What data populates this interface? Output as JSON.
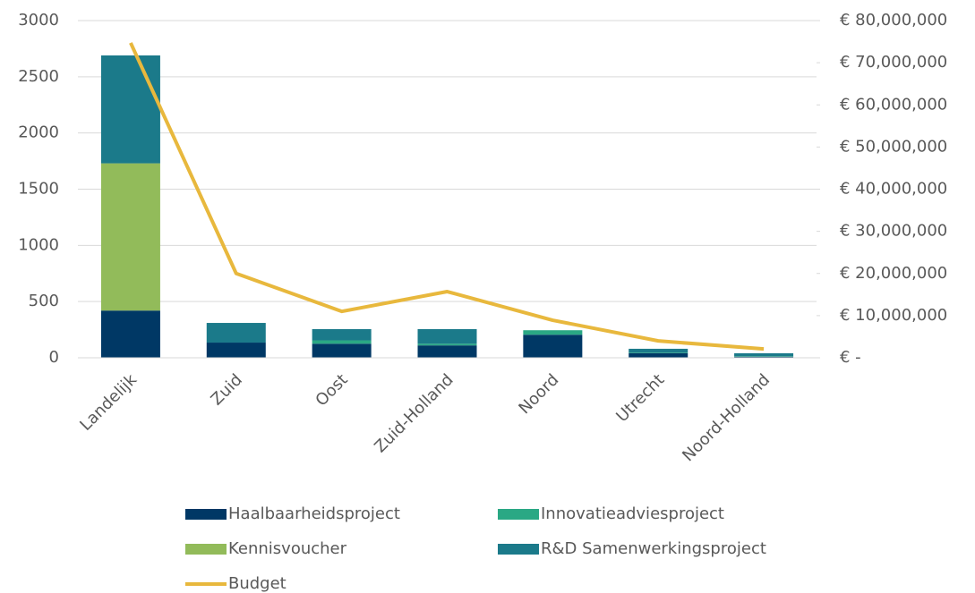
{
  "chart_data": {
    "type": "bar",
    "stacked": true,
    "categories": [
      "Landelijk",
      "Zuid",
      "Oost",
      "Zuid-Holland",
      "Noord",
      "Utrecht",
      "Noord-Holland"
    ],
    "series": [
      {
        "name": "Haalbaarheidsproject",
        "color": "#003865",
        "values": [
          420,
          135,
          125,
          110,
          205,
          40,
          10
        ]
      },
      {
        "name": "Innovatieadviesproject",
        "color": "#2aa884",
        "values": [
          0,
          0,
          30,
          15,
          40,
          5,
          5
        ]
      },
      {
        "name": "Kennisvoucher",
        "color": "#92bb5a",
        "values": [
          1310,
          0,
          0,
          0,
          0,
          0,
          0
        ]
      },
      {
        "name": "R&D Samenwerkingsproject",
        "color": "#1b7a8a",
        "values": [
          960,
          175,
          100,
          130,
          0,
          35,
          25
        ]
      },
      {
        "name": "Budget",
        "color": "#e8b83d",
        "type": "line",
        "axis": "y2",
        "values": [
          74700000,
          20000000,
          11000000,
          15700000,
          8900000,
          4000000,
          2100000
        ]
      }
    ],
    "ylim": [
      0,
      3000
    ],
    "yticks": [
      0,
      500,
      1000,
      1500,
      2000,
      2500,
      3000
    ],
    "y2lim": [
      0,
      80000000
    ],
    "y2ticks": [
      {
        "value": 0,
        "label": "€ -"
      },
      {
        "value": 10000000,
        "label": "€ 10,000,000"
      },
      {
        "value": 20000000,
        "label": "€ 20,000,000"
      },
      {
        "value": 30000000,
        "label": "€ 30,000,000"
      },
      {
        "value": 40000000,
        "label": "€ 40,000,000"
      },
      {
        "value": 50000000,
        "label": "€ 50,000,000"
      },
      {
        "value": 60000000,
        "label": "€ 60,000,000"
      },
      {
        "value": 70000000,
        "label": "€ 70,000,000"
      },
      {
        "value": 80000000,
        "label": "€ 80,000,000"
      }
    ],
    "grid": true,
    "legend": "bottom"
  }
}
